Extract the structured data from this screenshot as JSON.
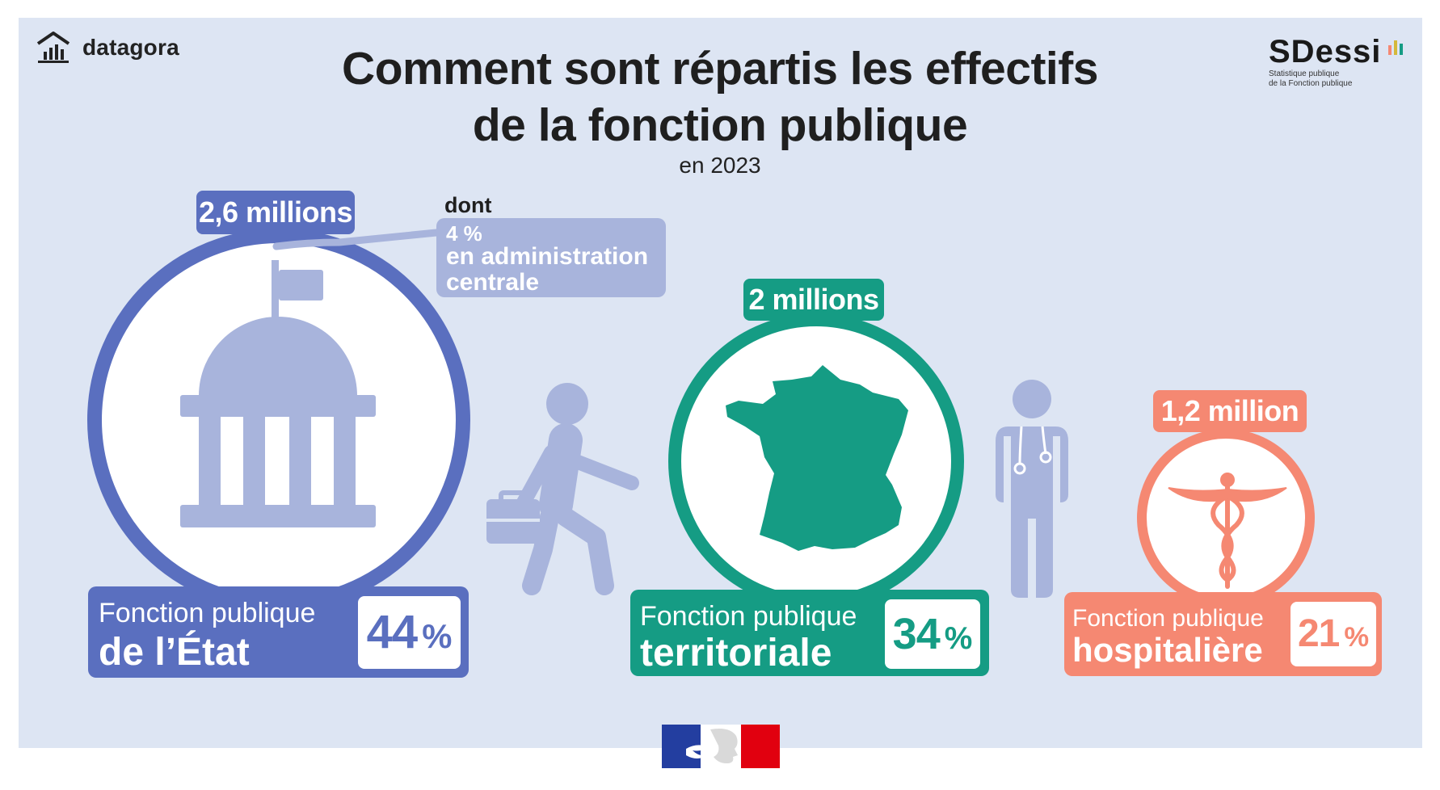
{
  "brand": {
    "name": "datagora",
    "icon": "bar-chart-house-icon"
  },
  "title": {
    "line1": "Comment sont répartis les effectifs",
    "line2": "de la fonction publique"
  },
  "subtitle": "en 2023",
  "sdessi": {
    "name": "SDessi",
    "tagline1": "Statistique publique",
    "tagline2": "de la Fonction publique"
  },
  "callout": {
    "label": "dont",
    "pct": "4 %",
    "text_line1": "en administration",
    "text_line2": "centrale"
  },
  "segments": [
    {
      "key": "etat",
      "count": "2,6 millions",
      "line1": "Fonction publique",
      "line2": "de l’État",
      "pct": "44",
      "pct_sign": "%",
      "color": "#5a6fbf",
      "share": 0.44,
      "icon": "government-building-icon"
    },
    {
      "key": "territoriale",
      "count": "2 millions",
      "line1": "Fonction publique",
      "line2": "territoriale",
      "pct": "34",
      "pct_sign": "%",
      "color": "#159c84",
      "share": 0.34,
      "icon": "france-map-icon"
    },
    {
      "key": "hospitaliere",
      "count": "1,2 million",
      "line1": "Fonction publique",
      "line2": "hospitalière",
      "pct": "21",
      "pct_sign": "%",
      "color": "#f58872",
      "share": 0.21,
      "icon": "caduceus-icon"
    }
  ],
  "decorations": {
    "walker": "walking-person-briefcase-icon",
    "doctor": "doctor-stethoscope-icon",
    "logo": "marianne-republique-logo",
    "accent_light": "#a8b4dc"
  }
}
